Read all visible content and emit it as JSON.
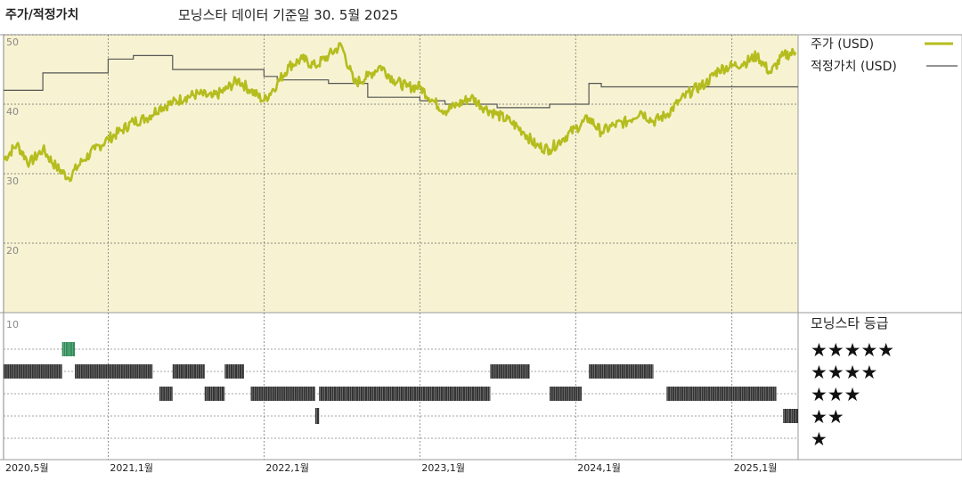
{
  "header": {
    "title": "주가/적정가치",
    "subtitle": "모닝스타 데이터 기준일 30. 5월 2025"
  },
  "chart_data": {
    "type": "line",
    "x_range": [
      "2020-05-01",
      "2025-06-05"
    ],
    "x_tick_labels": [
      {
        "date": "2020-05-01",
        "label": "2020,5월"
      },
      {
        "date": "2021-01-01",
        "label": "2021,1월"
      },
      {
        "date": "2022-01-01",
        "label": "2022,1월"
      },
      {
        "date": "2023-01-01",
        "label": "2023,1월"
      },
      {
        "date": "2024-01-01",
        "label": "2024,1월"
      },
      {
        "date": "2025-01-01",
        "label": "2025,1월"
      }
    ],
    "price_axis": {
      "ylim": [
        10,
        50
      ],
      "ticks": [
        10,
        20,
        30,
        40,
        50
      ],
      "grid": true
    },
    "legend": {
      "placement": "right",
      "price_label": "주가 (USD)",
      "fair_label": "적정가치 (USD)"
    },
    "series": [
      {
        "name": "주가 (USD)",
        "color": "#b5bd1e",
        "points": [
          [
            "2020-05-01",
            32.0
          ],
          [
            "2020-06-01",
            34.2
          ],
          [
            "2020-07-01",
            31.5
          ],
          [
            "2020-08-01",
            33.5
          ],
          [
            "2020-09-01",
            31.0
          ],
          [
            "2020-10-01",
            29.4
          ],
          [
            "2020-11-01",
            31.8
          ],
          [
            "2020-12-01",
            33.5
          ],
          [
            "2021-01-01",
            35.0
          ],
          [
            "2021-02-01",
            36.2
          ],
          [
            "2021-03-01",
            37.5
          ],
          [
            "2021-04-01",
            38.0
          ],
          [
            "2021-05-01",
            39.5
          ],
          [
            "2021-06-01",
            40.2
          ],
          [
            "2021-07-01",
            41.0
          ],
          [
            "2021-08-01",
            41.5
          ],
          [
            "2021-09-01",
            41.0
          ],
          [
            "2021-10-01",
            42.0
          ],
          [
            "2021-11-01",
            43.5
          ],
          [
            "2021-12-01",
            42.0
          ],
          [
            "2022-01-01",
            40.5
          ],
          [
            "2022-02-01",
            43.0
          ],
          [
            "2022-03-01",
            45.5
          ],
          [
            "2022-04-01",
            46.5
          ],
          [
            "2022-05-01",
            45.5
          ],
          [
            "2022-06-01",
            47.0
          ],
          [
            "2022-07-01",
            48.5
          ],
          [
            "2022-08-01",
            43.0
          ],
          [
            "2022-09-01",
            44.0
          ],
          [
            "2022-10-01",
            45.5
          ],
          [
            "2022-11-01",
            43.5
          ],
          [
            "2022-12-01",
            42.5
          ],
          [
            "2023-01-01",
            42.5
          ],
          [
            "2023-02-01",
            40.5
          ],
          [
            "2023-03-01",
            39.0
          ],
          [
            "2023-04-01",
            40.0
          ],
          [
            "2023-05-01",
            41.0
          ],
          [
            "2023-06-01",
            39.5
          ],
          [
            "2023-07-01",
            38.5
          ],
          [
            "2023-08-01",
            37.5
          ],
          [
            "2023-09-01",
            36.0
          ],
          [
            "2023-10-01",
            34.0
          ],
          [
            "2023-11-01",
            33.5
          ],
          [
            "2023-12-01",
            35.0
          ],
          [
            "2024-01-01",
            36.5
          ],
          [
            "2024-02-01",
            38.0
          ],
          [
            "2024-03-01",
            36.0
          ],
          [
            "2024-04-01",
            37.0
          ],
          [
            "2024-05-01",
            37.5
          ],
          [
            "2024-06-01",
            39.0
          ],
          [
            "2024-07-01",
            37.5
          ],
          [
            "2024-08-01",
            38.5
          ],
          [
            "2024-09-01",
            40.5
          ],
          [
            "2024-10-01",
            42.0
          ],
          [
            "2024-11-01",
            43.0
          ],
          [
            "2024-12-01",
            45.0
          ],
          [
            "2025-01-01",
            45.5
          ],
          [
            "2025-02-01",
            46.0
          ],
          [
            "2025-03-01",
            47.0
          ],
          [
            "2025-04-01",
            44.5
          ],
          [
            "2025-05-01",
            47.0
          ],
          [
            "2025-05-30",
            47.5
          ]
        ]
      },
      {
        "name": "적정가치 (USD)",
        "color": "#555555",
        "steps": [
          [
            "2020-05-01",
            42.0
          ],
          [
            "2020-08-01",
            44.5
          ],
          [
            "2021-01-01",
            46.5
          ],
          [
            "2021-03-01",
            47.0
          ],
          [
            "2021-06-01",
            45.0
          ],
          [
            "2022-01-01",
            44.0
          ],
          [
            "2022-02-01",
            43.5
          ],
          [
            "2022-06-01",
            43.0
          ],
          [
            "2022-09-01",
            41.0
          ],
          [
            "2023-01-01",
            40.5
          ],
          [
            "2023-03-01",
            40.0
          ],
          [
            "2023-07-01",
            39.5
          ],
          [
            "2023-11-01",
            40.0
          ],
          [
            "2024-02-01",
            43.0
          ],
          [
            "2024-03-01",
            42.5
          ],
          [
            "2025-05-30",
            42.5
          ]
        ]
      }
    ],
    "rating_panel": {
      "title": "모닝스타 등급",
      "levels": [
        {
          "stars": 5,
          "label": "★★★★★"
        },
        {
          "stars": 4,
          "label": "★★★★"
        },
        {
          "stars": 3,
          "label": "★★★"
        },
        {
          "stars": 2,
          "label": "★★"
        },
        {
          "stars": 1,
          "label": "★"
        }
      ],
      "axis_tick": "10",
      "highlight_color": "#2e8b57",
      "bar_color": "#333333",
      "segments": [
        {
          "stars": 5,
          "start": "2020-09-15",
          "end": "2020-10-15",
          "highlight": true
        },
        {
          "stars": 4,
          "start": "2020-05-01",
          "end": "2020-09-15"
        },
        {
          "stars": 4,
          "start": "2020-10-15",
          "end": "2021-04-15"
        },
        {
          "stars": 4,
          "start": "2021-06-01",
          "end": "2021-08-15"
        },
        {
          "stars": 4,
          "start": "2021-10-01",
          "end": "2021-11-15"
        },
        {
          "stars": 3,
          "start": "2021-05-01",
          "end": "2021-06-01"
        },
        {
          "stars": 3,
          "start": "2021-08-15",
          "end": "2021-10-01"
        },
        {
          "stars": 3,
          "start": "2021-12-01",
          "end": "2022-05-01"
        },
        {
          "stars": 2,
          "start": "2022-05-01",
          "end": "2022-05-10"
        },
        {
          "stars": 3,
          "start": "2022-05-10",
          "end": "2023-06-15"
        },
        {
          "stars": 4,
          "start": "2023-06-15",
          "end": "2023-09-15"
        },
        {
          "stars": 3,
          "start": "2023-11-01",
          "end": "2024-01-15"
        },
        {
          "stars": 4,
          "start": "2024-02-01",
          "end": "2024-07-01"
        },
        {
          "stars": 3,
          "start": "2024-08-01",
          "end": "2025-04-15"
        },
        {
          "stars": 2,
          "start": "2025-05-01",
          "end": "2025-06-05"
        }
      ]
    }
  }
}
